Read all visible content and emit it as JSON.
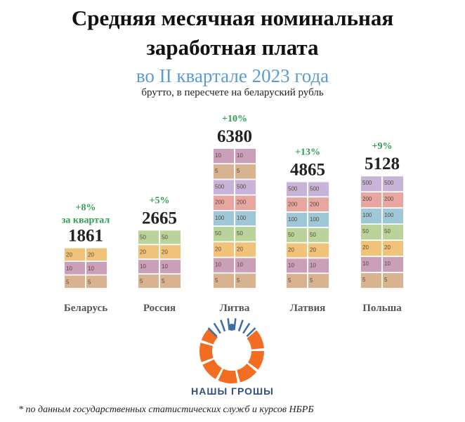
{
  "header": {
    "title_line1": "Средняя месячная номинальная",
    "title_line2": "заработная плата",
    "subtitle": "во II квартале 2023 года",
    "note": "брутто, в пересчете на беларуский рубль"
  },
  "colors": {
    "subtitle": "#5b9bd5",
    "growth": "#2e9e55",
    "value": "#222222",
    "brand": "#2f4f7f",
    "logo_orange": "#f26d21",
    "logo_blue": "#3a6ea5"
  },
  "chart_data": {
    "type": "bar",
    "categories": [
      "Беларусь",
      "Россия",
      "Литва",
      "Латвия",
      "Польша"
    ],
    "values": [
      1861,
      2665,
      6380,
      4865,
      5128
    ],
    "growth_labels": [
      "+8%",
      "+5%",
      "+10%",
      "+13%",
      "+9%"
    ],
    "growth_note": "за квартал",
    "value_labels": [
      "1861",
      "2665",
      "6380",
      "4865",
      "5128"
    ],
    "bar_style": "stacked-banknotes",
    "banknote_denominations": [
      "5",
      "10",
      "20",
      "50",
      "100",
      "200",
      "500"
    ]
  },
  "brand": {
    "name": "НАШЫ ГРОШЫ",
    "logo_icon": "orange-circle-segments-logo"
  },
  "footnote": "* по данным государственных статистических служб и курсов НБРБ"
}
